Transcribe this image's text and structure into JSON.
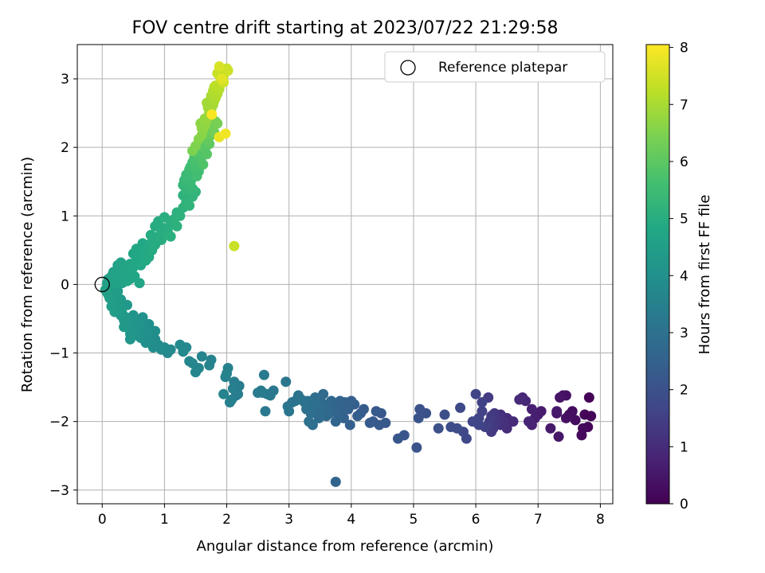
{
  "chart_data": {
    "type": "scatter",
    "title": "FOV centre drift starting at 2023/07/22 21:29:58",
    "xlabel": "Angular distance from reference (arcmin)",
    "ylabel": "Rotation from reference (arcmin)",
    "xlim": [
      -0.4,
      8.2
    ],
    "ylim": [
      -3.2,
      3.5
    ],
    "xticks": [
      0,
      1,
      2,
      3,
      4,
      5,
      6,
      7,
      8
    ],
    "yticks": [
      -3,
      -2,
      -1,
      0,
      1,
      2,
      3
    ],
    "grid": true,
    "legend": {
      "position": "top-right",
      "entries": [
        "Reference platepar"
      ]
    },
    "reference_point": {
      "x": 0,
      "y": 0
    },
    "colorbar": {
      "label": "Hours from first FF file",
      "colormap": "viridis",
      "range": [
        0,
        8.05
      ],
      "ticks": [
        0,
        1,
        2,
        3,
        4,
        5,
        6,
        7,
        8
      ]
    },
    "series": [
      {
        "x": [
          7.82,
          7.75,
          7.72,
          7.7,
          7.55,
          7.5,
          7.45,
          7.4,
          7.35,
          7.33,
          7.3,
          7.05,
          7.0,
          6.95,
          6.9,
          6.85,
          6.8,
          6.75,
          6.7,
          7.8,
          7.45,
          7.3,
          7.85,
          7.6,
          7.2,
          6.9,
          6.6,
          6.5,
          6.45,
          6.4,
          6.38,
          6.35,
          6.3,
          6.28,
          6.25,
          6.22,
          6.2,
          6.15,
          6.1,
          6.05,
          6.0,
          6.5,
          6.45,
          6.3,
          6.25,
          6.1,
          6.05,
          5.95,
          5.85,
          5.8,
          5.75,
          5.7,
          5.6,
          5.5,
          5.4,
          5.2,
          5.1,
          5.08,
          5.05,
          6.4,
          6.2
        ],
        "y": [
          -1.65,
          -1.9,
          -2.1,
          -2.2,
          -1.85,
          -1.9,
          -1.95,
          -1.62,
          -1.65,
          -2.22,
          -1.85,
          -1.85,
          -1.9,
          -1.95,
          -2.05,
          -2.0,
          -1.7,
          -1.65,
          -1.68,
          -2.08,
          -1.62,
          -1.88,
          -1.92,
          -1.98,
          -2.1,
          -1.82,
          -2.0,
          -2.1,
          -2.05,
          -1.9,
          -1.95,
          -2.0,
          -1.88,
          -2.1,
          -2.15,
          -2.0,
          -2.05,
          -2.08,
          -1.85,
          -2.05,
          -1.6,
          -1.95,
          -2.0,
          -2.05,
          -1.92,
          -1.72,
          -1.95,
          -2.0,
          -2.25,
          -2.15,
          -1.8,
          -2.1,
          -2.08,
          -1.9,
          -2.1,
          -1.88,
          -1.82,
          -1.95,
          -2.38,
          -2.05,
          -1.65
        ],
        "c": [
          0.05,
          0.1,
          0.15,
          0.2,
          0.25,
          0.3,
          0.35,
          0.4,
          0.45,
          0.5,
          0.55,
          0.6,
          0.65,
          0.7,
          0.75,
          0.8,
          0.85,
          0.9,
          0.95,
          0.12,
          0.38,
          0.48,
          0.08,
          0.28,
          0.58,
          0.72,
          0.98,
          1.0,
          1.05,
          1.1,
          1.15,
          1.2,
          1.25,
          1.3,
          1.35,
          1.4,
          1.45,
          1.5,
          1.55,
          1.6,
          1.65,
          1.02,
          1.08,
          1.28,
          1.38,
          1.58,
          1.62,
          1.68,
          1.72,
          1.76,
          1.8,
          1.84,
          1.88,
          1.92,
          1.96,
          2.0,
          2.04,
          2.08,
          2.1,
          1.12,
          1.42
        ]
      },
      {
        "x": [
          4.85,
          4.75,
          4.55,
          4.48,
          4.45,
          4.4,
          4.35,
          4.3,
          4.2,
          4.15,
          4.1,
          4.05,
          4.0,
          3.98,
          3.95,
          3.92,
          3.9,
          3.88,
          3.85,
          3.82,
          3.8,
          3.78,
          3.75,
          3.72,
          3.7,
          3.68,
          3.65,
          3.62,
          3.6,
          3.58,
          3.55,
          3.52,
          3.5,
          3.48,
          3.45,
          3.42,
          3.4,
          3.38,
          3.35,
          3.32,
          3.3,
          3.28,
          3.25,
          3.2,
          3.15,
          3.1,
          3.05,
          3.0,
          2.98,
          2.95,
          3.75,
          2.75,
          2.7,
          2.65,
          2.62,
          2.6,
          2.58,
          2.55,
          2.5,
          2.2,
          2.18,
          2.15,
          2.12,
          2.1,
          2.08,
          2.05,
          2.02,
          2.0,
          1.98,
          1.95,
          1.75,
          1.72,
          1.6,
          1.55,
          1.5,
          1.45,
          1.4,
          1.35,
          1.3,
          1.25,
          1.1,
          1.05,
          1.0
        ],
        "y": [
          -2.2,
          -2.25,
          -2.02,
          -1.88,
          -2.05,
          -1.85,
          -2.0,
          -2.02,
          -1.82,
          -1.88,
          -1.92,
          -1.75,
          -1.7,
          -2.05,
          -1.82,
          -1.78,
          -1.72,
          -1.95,
          -1.85,
          -1.7,
          -1.92,
          -1.8,
          -2.0,
          -1.85,
          -1.78,
          -1.7,
          -1.88,
          -1.75,
          -1.92,
          -1.82,
          -1.6,
          -1.72,
          -1.85,
          -1.95,
          -1.8,
          -1.65,
          -1.75,
          -2.05,
          -1.88,
          -2.0,
          -1.7,
          -1.82,
          -1.72,
          -1.68,
          -1.62,
          -1.7,
          -1.72,
          -1.85,
          -1.78,
          -1.42,
          -2.88,
          -1.55,
          -1.62,
          -1.6,
          -1.85,
          -1.32,
          -1.58,
          -1.55,
          -1.58,
          -1.48,
          -1.6,
          -1.62,
          -1.42,
          -1.52,
          -1.68,
          -1.72,
          -1.22,
          -1.3,
          -1.35,
          -1.6,
          -1.1,
          -1.18,
          -1.05,
          -1.22,
          -1.28,
          -1.15,
          -1.12,
          -0.92,
          -0.98,
          -0.88,
          -0.95,
          -1.0,
          -0.92
        ],
        "c": [
          2.12,
          2.16,
          2.2,
          2.22,
          2.24,
          2.26,
          2.28,
          2.3,
          2.34,
          2.36,
          2.38,
          2.4,
          2.42,
          2.44,
          2.46,
          2.48,
          2.5,
          2.52,
          2.54,
          2.56,
          2.58,
          2.6,
          2.62,
          2.64,
          2.66,
          2.68,
          2.7,
          2.72,
          2.74,
          2.76,
          2.78,
          2.8,
          2.82,
          2.84,
          2.86,
          2.88,
          2.9,
          2.92,
          2.94,
          2.96,
          2.98,
          3.0,
          3.02,
          3.04,
          3.06,
          3.08,
          3.1,
          3.12,
          3.14,
          3.16,
          2.6,
          3.2,
          3.22,
          3.24,
          3.26,
          3.28,
          3.3,
          3.32,
          3.34,
          3.36,
          3.38,
          3.4,
          3.42,
          3.44,
          3.46,
          3.48,
          3.5,
          3.52,
          3.54,
          3.56,
          3.58,
          3.6,
          3.62,
          3.64,
          3.66,
          3.68,
          3.7,
          3.72,
          3.74,
          3.76,
          3.78,
          3.8,
          3.82
        ]
      },
      {
        "x": [
          0.95,
          0.9,
          0.85,
          0.82,
          0.8,
          0.78,
          0.75,
          0.72,
          0.7,
          0.68,
          0.65,
          0.62,
          0.6,
          0.58,
          0.55,
          0.52,
          0.5,
          0.48,
          0.45,
          0.42,
          0.4,
          0.38,
          0.35,
          0.32,
          0.3,
          0.28,
          0.25,
          0.22,
          0.2,
          0.18,
          0.15,
          0.12,
          0.1,
          0.08,
          0.05,
          0.25,
          0.3,
          0.35,
          0.45,
          0.55,
          0.65,
          0.75,
          0.85,
          0.5,
          0.6,
          0.7,
          0.4,
          0.2,
          0.15,
          0.1,
          0.3,
          0.25,
          0.18,
          0.12,
          0.08
        ],
        "y": [
          -0.95,
          -0.88,
          -0.8,
          -0.92,
          -0.85,
          -0.75,
          -0.82,
          -0.7,
          -0.8,
          -0.65,
          -0.72,
          -0.78,
          -0.68,
          -0.75,
          -0.62,
          -0.7,
          -0.65,
          -0.58,
          -0.72,
          -0.6,
          -0.55,
          -0.48,
          -0.52,
          -0.42,
          -0.45,
          -0.38,
          -0.35,
          -0.3,
          -0.4,
          -0.25,
          -0.32,
          -0.2,
          -0.15,
          -0.12,
          -0.08,
          -0.28,
          -0.36,
          -0.62,
          -0.8,
          -0.55,
          -0.48,
          -0.58,
          -0.68,
          -0.45,
          -0.6,
          -0.85,
          -0.3,
          -0.18,
          -0.05,
          0.05,
          -0.22,
          -0.1,
          0.0,
          -0.02,
          0.02
        ],
        "c": [
          3.84,
          3.86,
          3.88,
          3.9,
          3.92,
          3.94,
          3.96,
          3.98,
          4.0,
          4.02,
          4.04,
          4.06,
          4.08,
          4.1,
          4.12,
          4.14,
          4.16,
          4.18,
          4.2,
          4.22,
          4.24,
          4.26,
          4.28,
          4.3,
          4.32,
          4.34,
          4.36,
          4.38,
          4.4,
          4.42,
          4.44,
          4.46,
          4.48,
          4.5,
          4.52,
          4.38,
          4.34,
          4.3,
          4.2,
          4.12,
          4.06,
          4.0,
          3.94,
          4.14,
          4.1,
          3.98,
          4.26,
          4.42,
          4.46,
          4.5,
          4.36,
          4.4,
          4.44,
          4.48,
          4.52
        ]
      },
      {
        "x": [
          0.1,
          0.15,
          0.2,
          0.25,
          0.3,
          0.35,
          0.4,
          0.45,
          0.5,
          0.55,
          0.6,
          0.65,
          0.7,
          0.75,
          0.8,
          0.85,
          0.9,
          0.95,
          1.0,
          1.05,
          1.1,
          1.15,
          1.2,
          1.25,
          1.3,
          1.35,
          1.4,
          1.45,
          1.5,
          0.25,
          0.35,
          0.45,
          0.55,
          0.65,
          0.75,
          0.85,
          0.95,
          0.4,
          0.6,
          0.8,
          0.2,
          0.3,
          0.5,
          0.7,
          0.9,
          1.1,
          1.0,
          1.2,
          1.3,
          1.4,
          0.62,
          0.78,
          0.42,
          0.18,
          0.32,
          0.52
        ],
        "y": [
          0.08,
          0.12,
          0.05,
          0.18,
          0.1,
          0.22,
          0.15,
          0.3,
          0.25,
          0.35,
          0.42,
          0.38,
          0.48,
          0.55,
          0.62,
          0.58,
          0.7,
          0.75,
          0.82,
          0.78,
          0.88,
          0.95,
          1.05,
          1.0,
          1.12,
          1.2,
          1.15,
          1.28,
          1.35,
          0.28,
          0.15,
          0.08,
          0.52,
          0.6,
          0.4,
          0.85,
          0.65,
          0.05,
          0.02,
          0.5,
          0.0,
          0.32,
          0.45,
          0.35,
          0.92,
          0.7,
          0.98,
          0.85,
          1.3,
          1.4,
          0.28,
          0.72,
          0.2,
          0.18,
          0.02,
          0.12
        ],
        "c": [
          4.55,
          4.58,
          4.6,
          4.63,
          4.65,
          4.68,
          4.7,
          4.73,
          4.75,
          4.78,
          4.8,
          4.83,
          4.85,
          4.88,
          4.9,
          4.93,
          4.95,
          4.98,
          5.0,
          5.03,
          5.05,
          5.08,
          5.1,
          5.13,
          5.15,
          5.18,
          5.2,
          5.23,
          5.25,
          4.62,
          4.66,
          4.7,
          4.8,
          4.84,
          4.88,
          4.94,
          4.98,
          4.72,
          4.76,
          4.9,
          4.56,
          4.64,
          4.74,
          4.86,
          4.96,
          5.06,
          5.02,
          5.12,
          5.16,
          5.22,
          4.82,
          4.92,
          4.68,
          4.58,
          4.62,
          4.72
        ]
      },
      {
        "x": [
          1.3,
          1.32,
          1.35,
          1.38,
          1.4,
          1.42,
          1.45,
          1.48,
          1.5,
          1.52,
          1.55,
          1.58,
          1.6,
          1.62,
          1.65,
          1.68,
          1.7,
          1.72,
          1.75,
          1.78,
          1.8,
          1.82,
          1.85,
          1.45,
          1.55,
          1.65,
          1.75,
          1.38,
          1.5,
          1.62,
          1.72,
          1.58,
          1.68,
          1.78,
          1.42,
          1.52,
          1.35,
          1.48
        ],
        "y": [
          1.45,
          1.52,
          1.6,
          1.55,
          1.68,
          1.72,
          1.78,
          1.85,
          1.8,
          1.92,
          1.88,
          1.95,
          2.0,
          2.05,
          2.1,
          2.15,
          2.12,
          2.2,
          2.25,
          2.3,
          2.22,
          2.38,
          2.35,
          1.4,
          1.65,
          1.98,
          2.18,
          1.62,
          1.7,
          1.75,
          2.05,
          1.82,
          1.9,
          2.28,
          1.5,
          1.58,
          1.38,
          1.65
        ],
        "c": [
          5.3,
          5.35,
          5.4,
          5.45,
          5.5,
          5.55,
          5.6,
          5.65,
          5.7,
          5.75,
          5.8,
          5.85,
          5.9,
          5.95,
          6.0,
          6.05,
          6.1,
          6.15,
          6.2,
          6.25,
          6.3,
          6.35,
          6.4,
          5.32,
          5.52,
          5.72,
          6.12,
          5.42,
          5.62,
          5.82,
          6.02,
          5.68,
          5.92,
          6.22,
          5.38,
          5.58,
          5.28,
          5.48
        ]
      },
      {
        "x": [
          1.45,
          1.5,
          1.55,
          1.6,
          1.62,
          1.65,
          1.68,
          1.7,
          1.72,
          1.75,
          1.78,
          1.8,
          1.82,
          1.85,
          1.88,
          1.9,
          1.92,
          1.95,
          1.98,
          2.0,
          2.02,
          1.6,
          1.7,
          1.8,
          1.9,
          1.65,
          1.75,
          1.85,
          1.95,
          1.68,
          1.78,
          1.88,
          1.58,
          1.72,
          1.82,
          1.92,
          2.12,
          1.98,
          1.88,
          1.76
        ],
        "y": [
          1.95,
          2.02,
          2.12,
          2.18,
          2.25,
          2.32,
          2.4,
          2.45,
          2.5,
          2.55,
          2.62,
          2.68,
          2.72,
          2.78,
          2.85,
          2.92,
          2.98,
          3.05,
          3.1,
          3.15,
          3.12,
          2.28,
          2.58,
          2.88,
          3.02,
          2.42,
          2.75,
          3.08,
          2.95,
          2.65,
          2.82,
          3.18,
          2.35,
          2.6,
          2.9,
          3.0,
          0.56,
          2.2,
          2.15,
          2.48
        ],
        "c": [
          6.45,
          6.5,
          6.55,
          6.6,
          6.65,
          6.7,
          6.75,
          6.8,
          6.85,
          6.9,
          6.95,
          7.0,
          7.05,
          7.1,
          7.15,
          7.2,
          7.25,
          7.3,
          7.35,
          7.4,
          7.45,
          6.62,
          6.88,
          7.12,
          7.32,
          6.72,
          6.98,
          7.38,
          7.5,
          6.92,
          7.08,
          7.6,
          6.68,
          6.82,
          7.22,
          7.7,
          7.4,
          7.9,
          7.8,
          8.0
        ]
      }
    ]
  }
}
